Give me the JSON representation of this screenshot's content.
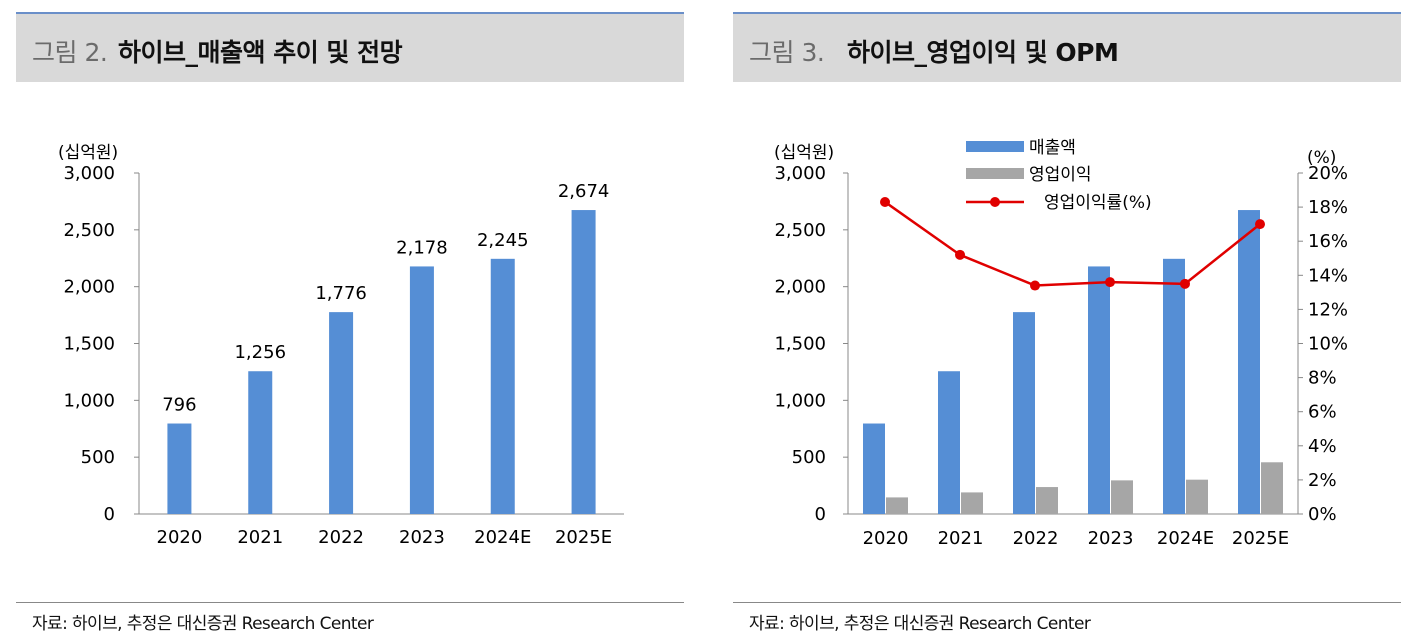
{
  "left_panel": {
    "fig_label": "그림 2.",
    "fig_title": "하이브_매출액 추이 및 전망",
    "unit_label": "(십억원)",
    "source": "자료: 하이브, 추정은 대신증권 Research Center"
  },
  "right_panel": {
    "fig_label": "그림 3.",
    "fig_title": "하이브_영업이익 및 OPM",
    "unit_label_left": "(십억원)",
    "unit_label_right": "(%)",
    "source": "자료: 하이브, 추정은 대신증권 Research Center"
  },
  "colors": {
    "revenue": "#558ed5",
    "op_profit": "#a6a6a6",
    "opm": "#e00000"
  },
  "chart_data": [
    {
      "type": "bar",
      "title": "하이브_매출액 추이 및 전망",
      "ylabel": "(십억원)",
      "categories": [
        "2020",
        "2021",
        "2022",
        "2023",
        "2024E",
        "2025E"
      ],
      "values": [
        796,
        1256,
        1776,
        2178,
        2245,
        2674
      ],
      "data_labels": [
        "796",
        "1,256",
        "1,776",
        "2,178",
        "2,245",
        "2,674"
      ],
      "ylim": [
        0,
        3000
      ],
      "yticks": [
        "0",
        "500",
        "1,000",
        "1,500",
        "2,000",
        "2,500",
        "3,000"
      ],
      "grid": false
    },
    {
      "type": "bar+line",
      "title": "하이브_영업이익 및 OPM",
      "ylabel": "(십억원)",
      "y2label": "(%)",
      "categories": [
        "2020",
        "2021",
        "2022",
        "2023",
        "2024E",
        "2025E"
      ],
      "series": [
        {
          "name": "매출액",
          "type": "bar",
          "axis": "left",
          "values": [
            796,
            1256,
            1776,
            2178,
            2245,
            2674
          ]
        },
        {
          "name": "영업이익",
          "type": "bar",
          "axis": "left",
          "values": [
            146,
            190,
            237,
            296,
            302,
            455
          ]
        },
        {
          "name": "영업이익률(%)",
          "type": "line",
          "axis": "right",
          "values": [
            18.3,
            15.2,
            13.4,
            13.6,
            13.5,
            17.0
          ]
        }
      ],
      "ylim": [
        0,
        3000
      ],
      "y2lim": [
        0,
        20
      ],
      "yticks": [
        "0",
        "500",
        "1,000",
        "1,500",
        "2,000",
        "2,500",
        "3,000"
      ],
      "y2ticks": [
        "0%",
        "2%",
        "4%",
        "6%",
        "8%",
        "10%",
        "12%",
        "14%",
        "16%",
        "18%",
        "20%"
      ],
      "legend": [
        "매출액",
        "영업이익",
        "영업이익률(%)"
      ],
      "legend_position": "top-center",
      "grid": false
    }
  ]
}
